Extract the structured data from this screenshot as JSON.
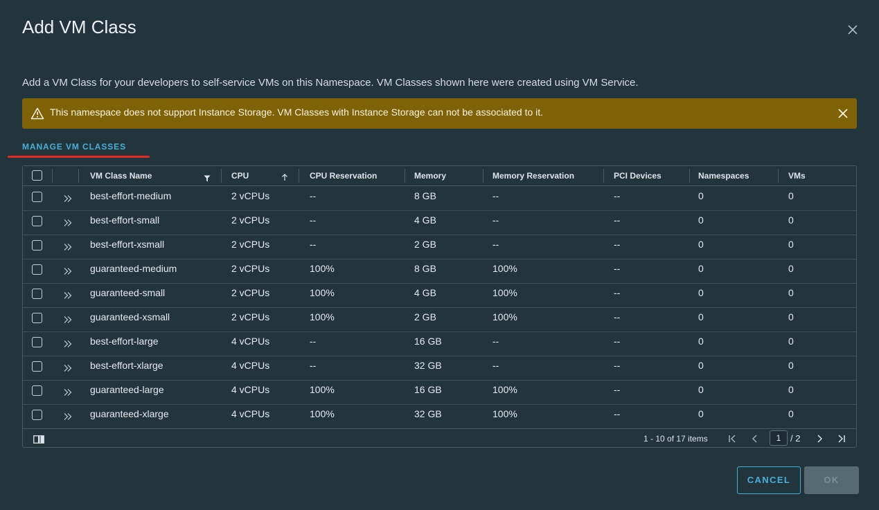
{
  "dialog": {
    "title": "Add VM Class",
    "description": "Add a VM Class for your developers to self-service VMs on this Namespace. VM Classes shown here were created using VM Service.",
    "close_icon": "close-icon"
  },
  "alert": {
    "type": "warning",
    "icon": "warning-icon",
    "text": "This namespace does not support Instance Storage. VM Classes with Instance Storage can not be associated to it.",
    "color": "#7f6108"
  },
  "manage_link": "MANAGE VM CLASSES",
  "table": {
    "columns": [
      {
        "label": "VM Class Name",
        "filter": true
      },
      {
        "label": "CPU",
        "sort": "ascending"
      },
      {
        "label": "CPU Reservation"
      },
      {
        "label": "Memory"
      },
      {
        "label": "Memory Reservation"
      },
      {
        "label": "PCI Devices"
      },
      {
        "label": "Namespaces"
      },
      {
        "label": "VMs"
      }
    ],
    "rows": [
      [
        "best-effort-medium",
        "2 vCPUs",
        "--",
        "8 GB",
        "--",
        "--",
        "0",
        "0"
      ],
      [
        "best-effort-small",
        "2 vCPUs",
        "--",
        "4 GB",
        "--",
        "--",
        "0",
        "0"
      ],
      [
        "best-effort-xsmall",
        "2 vCPUs",
        "--",
        "2 GB",
        "--",
        "--",
        "0",
        "0"
      ],
      [
        "guaranteed-medium",
        "2 vCPUs",
        "100%",
        "8 GB",
        "100%",
        "--",
        "0",
        "0"
      ],
      [
        "guaranteed-small",
        "2 vCPUs",
        "100%",
        "4 GB",
        "100%",
        "--",
        "0",
        "0"
      ],
      [
        "guaranteed-xsmall",
        "2 vCPUs",
        "100%",
        "2 GB",
        "100%",
        "--",
        "0",
        "0"
      ],
      [
        "best-effort-large",
        "4 vCPUs",
        "--",
        "16 GB",
        "--",
        "--",
        "0",
        "0"
      ],
      [
        "best-effort-xlarge",
        "4 vCPUs",
        "--",
        "32 GB",
        "--",
        "--",
        "0",
        "0"
      ],
      [
        "guaranteed-large",
        "4 vCPUs",
        "100%",
        "16 GB",
        "100%",
        "--",
        "0",
        "0"
      ],
      [
        "guaranteed-xlarge",
        "4 vCPUs",
        "100%",
        "32 GB",
        "100%",
        "--",
        "0",
        "0"
      ]
    ]
  },
  "pagination": {
    "items_text": "1 - 10 of 17 items",
    "current_page": "1",
    "total_text": "/ 2"
  },
  "buttons": {
    "cancel": "CANCEL",
    "ok": "OK"
  }
}
